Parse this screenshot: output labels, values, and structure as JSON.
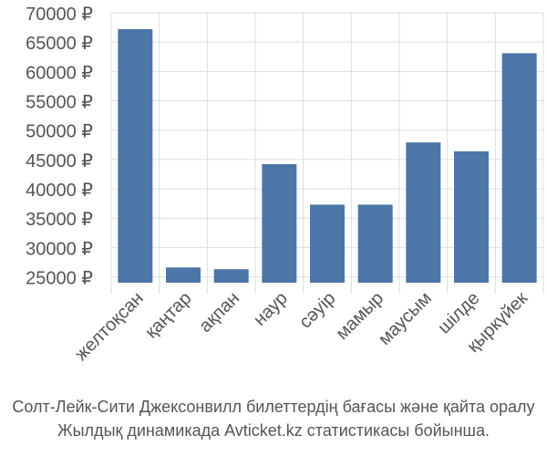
{
  "chart_data": {
    "type": "bar",
    "categories": [
      "желтоқсан",
      "қаңтар",
      "ақпан",
      "наур",
      "сәуір",
      "мамыр",
      "маусым",
      "шілде",
      "қыркүйек"
    ],
    "values": [
      67200,
      26600,
      26300,
      44200,
      37300,
      37300,
      47900,
      46400,
      63100
    ],
    "ylim": [
      24000,
      70000
    ],
    "yticks": [
      25000,
      30000,
      35000,
      40000,
      45000,
      50000,
      55000,
      60000,
      65000,
      70000
    ],
    "ytick_labels": [
      "25000 ₽",
      "30000 ₽",
      "35000 ₽",
      "40000 ₽",
      "45000 ₽",
      "50000 ₽",
      "55000 ₽",
      "60000 ₽",
      "65000 ₽",
      "70000 ₽"
    ],
    "grid": true,
    "bar_color": "#4a76a8",
    "grid_color": "#dddddd"
  },
  "caption": {
    "line1": "Солт-Лейк-Сити Джексонвилл билеттердің бағасы және қайта оралу",
    "line2": "Жылдық динамикада Avticket.kz статистикасы бойынша."
  }
}
